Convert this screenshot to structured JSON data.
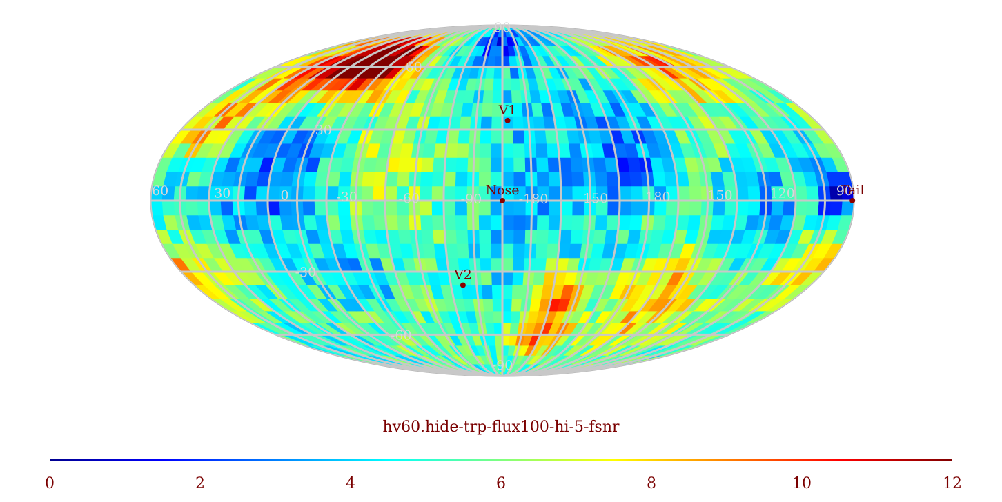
{
  "chart_data": {
    "type": "heatmap",
    "projection": "mollweide",
    "title": "hv60.hide-trp-flux100-hi-5-fsnr",
    "colormap": "jet",
    "colorbar": {
      "range": [
        0,
        12
      ],
      "ticks": [
        "0",
        "2",
        "4",
        "6",
        "8",
        "10",
        "12"
      ],
      "placement": "bottom"
    },
    "grid": true,
    "grid_color": "#c8c8c8",
    "latitude_labels": [
      {
        "text": "90",
        "lat": 90
      },
      {
        "text": "60",
        "lat": 60
      },
      {
        "text": "30",
        "lat": 30
      },
      {
        "text": "-30",
        "lat": -30
      },
      {
        "text": "-60",
        "lat": -60
      },
      {
        "text": "-90",
        "lat": -90
      }
    ],
    "longitude_labels": [
      "60",
      "30",
      "0",
      "-30",
      "-60",
      "-90",
      "-180",
      "150",
      "180",
      "150",
      "120",
      "90"
    ],
    "markers": [
      {
        "name": "V1",
        "lon": 3,
        "lat": 34
      },
      {
        "name": "Nose",
        "lon": 0,
        "lat": 0
      },
      {
        "name": "V2",
        "lon": -23,
        "lat": -36
      },
      {
        "name": "Tail",
        "lon": 179,
        "lat": 0
      }
    ],
    "hotspots": [
      {
        "lon": -122,
        "lat": 66,
        "value": 10.8,
        "sigma": 12
      },
      {
        "lon": -97,
        "lat": 58,
        "value": 10.2,
        "sigma": 10
      },
      {
        "lon": 32,
        "lat": -42,
        "value": 10.0,
        "sigma": 10
      },
      {
        "lon": 28,
        "lat": -62,
        "value": 9.2,
        "sigma": 8
      },
      {
        "lon": 132,
        "lat": 62,
        "value": 8.8,
        "sigma": 12
      },
      {
        "lon": -168,
        "lat": -32,
        "value": 8.6,
        "sigma": 14
      },
      {
        "lon": -165,
        "lat": 28,
        "value": 8.2,
        "sigma": 12
      },
      {
        "lon": 95,
        "lat": -45,
        "value": 8.0,
        "sigma": 14
      },
      {
        "lon": -150,
        "lat": 45,
        "value": 8.0,
        "sigma": 12
      },
      {
        "lon": 165,
        "lat": -25,
        "value": 7.6,
        "sigma": 12
      }
    ],
    "coldspots": [
      {
        "lon": 170,
        "lat": 3,
        "value": 0.5,
        "sigma": 6
      },
      {
        "lon": -110,
        "lat": 10,
        "value": 2.4,
        "sigma": 18
      },
      {
        "lon": 70,
        "lat": 20,
        "value": 2.6,
        "sigma": 18
      },
      {
        "lon": -5,
        "lat": 75,
        "value": 2.4,
        "sigma": 10
      },
      {
        "lon": 130,
        "lat": -5,
        "value": 2.8,
        "sigma": 20
      },
      {
        "lon": -80,
        "lat": -30,
        "value": 2.8,
        "sigma": 14
      }
    ]
  }
}
